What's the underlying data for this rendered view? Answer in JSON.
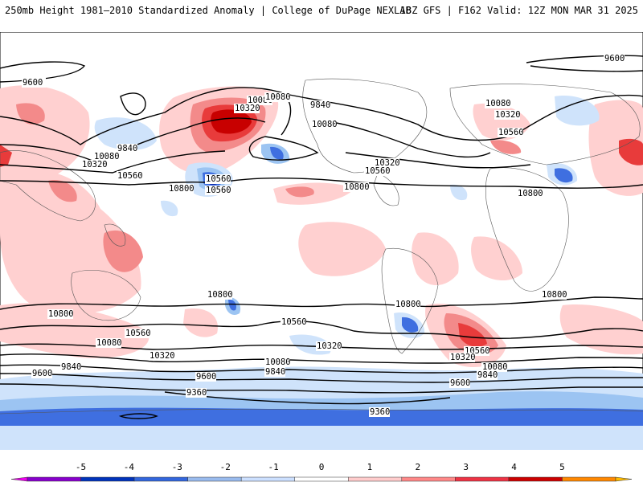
{
  "header": {
    "left": "250mb Height 1981–2010 Standardized Anomaly | College of DuPage NEXLAB",
    "right": "18Z GFS | F162 Valid: 12Z MON MAR 31 2025"
  },
  "contour_labels": [
    "9600",
    "9600",
    "9840",
    "9840",
    "10080",
    "10080",
    "10080",
    "10320",
    "10320",
    "10560",
    "10560",
    "10800",
    "10800",
    "10080",
    "10320",
    "10560",
    "10800",
    "10320",
    "10560",
    "10800",
    "10800",
    "10560",
    "10320",
    "10080",
    "9840",
    "9600",
    "10800",
    "10560",
    "10320",
    "10080",
    "9840",
    "9600",
    "9360",
    "9360",
    "10800",
    "10560",
    "10320",
    "10080",
    "9840",
    "9600",
    "10560",
    "10080"
  ],
  "legend": {
    "ticks": [
      "-5",
      "-4",
      "-3",
      "-2",
      "-1",
      "0",
      "1",
      "2",
      "3",
      "4",
      "5"
    ],
    "colors": [
      "#ee00ee",
      "#8800cc",
      "#0033bb",
      "#3366dd",
      "#99bbee",
      "#cce0ff",
      "#ffffff",
      "#ffcccc",
      "#ff8888",
      "#ee3344",
      "#cc0000",
      "#ff8800",
      "#ffbb00"
    ]
  },
  "colors": {
    "pos1": "#ffd0d0",
    "pos2": "#f38a8a",
    "pos3": "#e83b3b",
    "pos4": "#c80000",
    "neg1": "#cfe3fb",
    "neg2": "#9cc4f2",
    "neg3": "#3f6fe0",
    "neg4": "#1030b0",
    "neg5": "#6a00a8"
  }
}
